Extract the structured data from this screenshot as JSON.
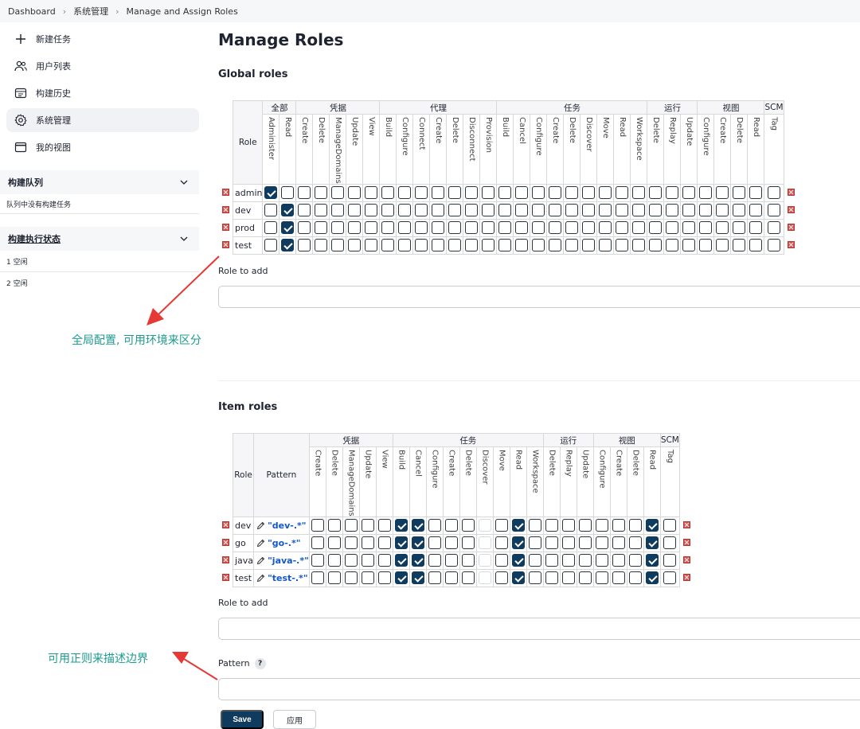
{
  "breadcrumb": [
    "Dashboard",
    "系统管理",
    "Manage and Assign Roles"
  ],
  "sidebar": {
    "tasks": [
      {
        "label": "新建任务",
        "icon": "plus-icon"
      },
      {
        "label": "用户列表",
        "icon": "users-icon"
      },
      {
        "label": "构建历史",
        "icon": "history-icon"
      },
      {
        "label": "系统管理",
        "icon": "gear-icon",
        "active": true
      },
      {
        "label": "我的视图",
        "icon": "window-icon"
      }
    ],
    "queue": {
      "title": "构建队列",
      "empty": "队列中没有构建任务"
    },
    "executors": {
      "title": "构建执行状态",
      "items": [
        "1 空闲",
        "2 空闲"
      ]
    }
  },
  "page_title": "Manage Roles",
  "global": {
    "title": "Global roles",
    "role_header": "Role",
    "groups": [
      {
        "name": "全部",
        "perms": [
          "Administer",
          "Read"
        ]
      },
      {
        "name": "凭据",
        "perms": [
          "Create",
          "Delete",
          "ManageDomains",
          "Update",
          "View"
        ]
      },
      {
        "name": "代理",
        "perms": [
          "Build",
          "Configure",
          "Connect",
          "Create",
          "Delete",
          "Disconnect",
          "Provision"
        ]
      },
      {
        "name": "任务",
        "perms": [
          "Build",
          "Cancel",
          "Configure",
          "Create",
          "Delete",
          "Discover",
          "Move",
          "Read",
          "Workspace"
        ]
      },
      {
        "name": "运行",
        "perms": [
          "Delete",
          "Replay",
          "Update"
        ]
      },
      {
        "name": "视图",
        "perms": [
          "Configure",
          "Create",
          "Delete",
          "Read"
        ]
      },
      {
        "name": "SCM",
        "perms": [
          "Tag"
        ]
      }
    ],
    "rows": [
      {
        "role": "admin",
        "checked": [
          0
        ]
      },
      {
        "role": "dev",
        "checked": [
          1
        ]
      },
      {
        "role": "prod",
        "checked": [
          1
        ]
      },
      {
        "role": "test",
        "checked": [
          1
        ]
      }
    ],
    "role_to_add_label": "Role to add",
    "role_to_add_value": ""
  },
  "item": {
    "title": "Item roles",
    "role_header": "Role",
    "pattern_header": "Pattern",
    "groups": [
      {
        "name": "凭据",
        "perms": [
          "Create",
          "Delete",
          "ManageDomains",
          "Update",
          "View"
        ]
      },
      {
        "name": "任务",
        "perms": [
          "Build",
          "Cancel",
          "Configure",
          "Create",
          "Delete",
          "Discover",
          "Move",
          "Read",
          "Workspace"
        ]
      },
      {
        "name": "运行",
        "perms": [
          "Delete",
          "Replay",
          "Update"
        ]
      },
      {
        "name": "视图",
        "perms": [
          "Configure",
          "Create",
          "Delete",
          "Read"
        ]
      },
      {
        "name": "SCM",
        "perms": [
          "Tag"
        ]
      }
    ],
    "rows": [
      {
        "role": "dev",
        "pattern": "\"dev-.*\"",
        "checked": [
          5,
          6,
          12,
          20
        ]
      },
      {
        "role": "go",
        "pattern": "\"go-.*\"",
        "checked": [
          5,
          6,
          12,
          20
        ]
      },
      {
        "role": "java",
        "pattern": "\"java-.*\"",
        "checked": [
          5,
          6,
          12,
          20
        ]
      },
      {
        "role": "test",
        "pattern": "\"test-.*\"",
        "checked": [
          5,
          6,
          12,
          20
        ]
      }
    ],
    "dim_columns": [
      10
    ],
    "role_to_add_label": "Role to add",
    "pattern_label": "Pattern",
    "help": "?"
  },
  "annotations": {
    "global_note": "全局配置, 可用环境来区分",
    "item_note": "可用正则来描述边界",
    "color": "#1b9a8f",
    "arrow_color": "#e53935"
  },
  "buttons": {
    "save": "Save",
    "apply": "应用"
  }
}
